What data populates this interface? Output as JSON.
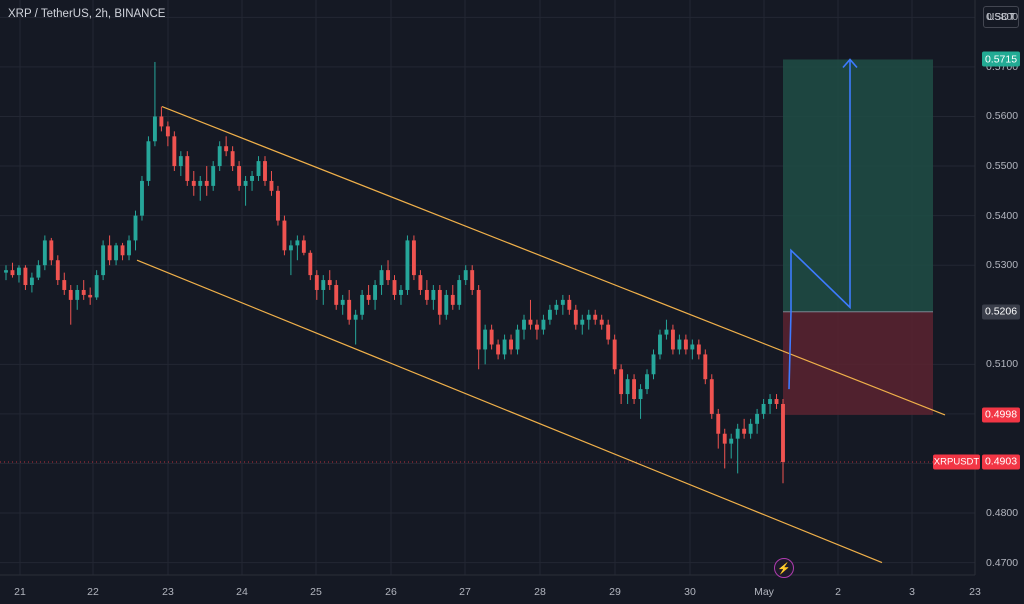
{
  "header": {
    "title": "XRP / TetherUS, 2h, BINANCE",
    "currency": "USDT"
  },
  "colors": {
    "background": "#151924",
    "grid": "#232733",
    "up": "#26a69a",
    "down": "#ef5350",
    "channel": "#f0b04a",
    "arrow": "#3d7bff",
    "target_zone": "#1f4d45",
    "stop_zone": "#5a2330"
  },
  "price_tags": {
    "target": {
      "label": "0.5715",
      "bg": "#22ab94"
    },
    "entry": {
      "label": "0.5206",
      "bg": "#3a3e4a"
    },
    "stop": {
      "label": "0.4998",
      "bg": "#f23645"
    },
    "last": {
      "symbol": "XRPUSDT",
      "label": "0.4903",
      "bg": "#f23645"
    }
  },
  "icons": {
    "event": "lightning-bolt-icon"
  },
  "chart_data": {
    "type": "candlestick",
    "title": "XRP / TetherUS, 2h, BINANCE",
    "ylim": [
      0.4675,
      0.5835
    ],
    "y_ticks": [
      "0.5800",
      "0.5700",
      "0.5600",
      "0.5500",
      "0.5400",
      "0.5300",
      "0.5100",
      "0.5000",
      "0.4900",
      "0.4800",
      "0.4700"
    ],
    "x_ticks": [
      "21",
      "22",
      "23",
      "24",
      "25",
      "26",
      "27",
      "28",
      "29",
      "30",
      "May",
      "2",
      "3",
      "23"
    ],
    "grid": true,
    "legend": "none",
    "candles": [
      [
        0.5285,
        0.53,
        0.527,
        0.529
      ],
      [
        0.529,
        0.5305,
        0.5275,
        0.528
      ],
      [
        0.528,
        0.53,
        0.5265,
        0.5295
      ],
      [
        0.5295,
        0.53,
        0.525,
        0.526
      ],
      [
        0.526,
        0.5285,
        0.5245,
        0.5275
      ],
      [
        0.5275,
        0.531,
        0.527,
        0.53
      ],
      [
        0.53,
        0.536,
        0.529,
        0.535
      ],
      [
        0.535,
        0.5355,
        0.53,
        0.531
      ],
      [
        0.531,
        0.532,
        0.526,
        0.527
      ],
      [
        0.527,
        0.5285,
        0.524,
        0.525
      ],
      [
        0.525,
        0.526,
        0.518,
        0.523
      ],
      [
        0.523,
        0.526,
        0.521,
        0.525
      ],
      [
        0.525,
        0.527,
        0.523,
        0.524
      ],
      [
        0.524,
        0.5255,
        0.522,
        0.5235
      ],
      [
        0.5235,
        0.529,
        0.523,
        0.528
      ],
      [
        0.528,
        0.535,
        0.527,
        0.534
      ],
      [
        0.534,
        0.536,
        0.53,
        0.531
      ],
      [
        0.531,
        0.5345,
        0.53,
        0.534
      ],
      [
        0.534,
        0.5345,
        0.531,
        0.532
      ],
      [
        0.532,
        0.536,
        0.531,
        0.535
      ],
      [
        0.535,
        0.541,
        0.533,
        0.54
      ],
      [
        0.54,
        0.548,
        0.539,
        0.547
      ],
      [
        0.547,
        0.556,
        0.546,
        0.555
      ],
      [
        0.555,
        0.571,
        0.554,
        0.56
      ],
      [
        0.56,
        0.562,
        0.557,
        0.558
      ],
      [
        0.558,
        0.559,
        0.554,
        0.556
      ],
      [
        0.556,
        0.557,
        0.549,
        0.55
      ],
      [
        0.55,
        0.553,
        0.548,
        0.552
      ],
      [
        0.552,
        0.553,
        0.546,
        0.547
      ],
      [
        0.547,
        0.549,
        0.544,
        0.546
      ],
      [
        0.546,
        0.548,
        0.543,
        0.547
      ],
      [
        0.547,
        0.55,
        0.544,
        0.546
      ],
      [
        0.546,
        0.551,
        0.545,
        0.55
      ],
      [
        0.55,
        0.555,
        0.549,
        0.554
      ],
      [
        0.554,
        0.556,
        0.552,
        0.553
      ],
      [
        0.553,
        0.554,
        0.549,
        0.55
      ],
      [
        0.55,
        0.551,
        0.545,
        0.546
      ],
      [
        0.546,
        0.548,
        0.542,
        0.547
      ],
      [
        0.547,
        0.549,
        0.545,
        0.548
      ],
      [
        0.548,
        0.552,
        0.547,
        0.551
      ],
      [
        0.551,
        0.552,
        0.546,
        0.547
      ],
      [
        0.547,
        0.549,
        0.544,
        0.545
      ],
      [
        0.545,
        0.546,
        0.538,
        0.539
      ],
      [
        0.539,
        0.54,
        0.532,
        0.533
      ],
      [
        0.533,
        0.535,
        0.528,
        0.534
      ],
      [
        0.534,
        0.536,
        0.531,
        0.535
      ],
      [
        0.535,
        0.536,
        0.532,
        0.5325
      ],
      [
        0.5325,
        0.533,
        0.527,
        0.528
      ],
      [
        0.528,
        0.529,
        0.523,
        0.525
      ],
      [
        0.525,
        0.528,
        0.522,
        0.527
      ],
      [
        0.527,
        0.529,
        0.525,
        0.526
      ],
      [
        0.526,
        0.527,
        0.521,
        0.522
      ],
      [
        0.522,
        0.524,
        0.52,
        0.523
      ],
      [
        0.523,
        0.525,
        0.518,
        0.519
      ],
      [
        0.519,
        0.521,
        0.514,
        0.52
      ],
      [
        0.52,
        0.525,
        0.519,
        0.524
      ],
      [
        0.524,
        0.526,
        0.522,
        0.523
      ],
      [
        0.523,
        0.527,
        0.521,
        0.526
      ],
      [
        0.526,
        0.53,
        0.524,
        0.529
      ],
      [
        0.529,
        0.531,
        0.526,
        0.527
      ],
      [
        0.527,
        0.528,
        0.523,
        0.524
      ],
      [
        0.524,
        0.526,
        0.522,
        0.525
      ],
      [
        0.525,
        0.536,
        0.524,
        0.535
      ],
      [
        0.535,
        0.536,
        0.527,
        0.528
      ],
      [
        0.528,
        0.529,
        0.524,
        0.525
      ],
      [
        0.525,
        0.527,
        0.522,
        0.523
      ],
      [
        0.523,
        0.526,
        0.521,
        0.525
      ],
      [
        0.525,
        0.526,
        0.518,
        0.52
      ],
      [
        0.52,
        0.525,
        0.519,
        0.524
      ],
      [
        0.524,
        0.526,
        0.521,
        0.522
      ],
      [
        0.522,
        0.528,
        0.521,
        0.527
      ],
      [
        0.527,
        0.53,
        0.526,
        0.529
      ],
      [
        0.529,
        0.53,
        0.524,
        0.525
      ],
      [
        0.525,
        0.526,
        0.509,
        0.513
      ],
      [
        0.513,
        0.518,
        0.51,
        0.517
      ],
      [
        0.517,
        0.518,
        0.513,
        0.514
      ],
      [
        0.514,
        0.515,
        0.511,
        0.512
      ],
      [
        0.512,
        0.516,
        0.511,
        0.515
      ],
      [
        0.515,
        0.516,
        0.512,
        0.513
      ],
      [
        0.513,
        0.518,
        0.512,
        0.517
      ],
      [
        0.517,
        0.52,
        0.515,
        0.519
      ],
      [
        0.519,
        0.523,
        0.517,
        0.518
      ],
      [
        0.518,
        0.519,
        0.515,
        0.517
      ],
      [
        0.517,
        0.52,
        0.516,
        0.519
      ],
      [
        0.519,
        0.522,
        0.518,
        0.521
      ],
      [
        0.521,
        0.523,
        0.52,
        0.522
      ],
      [
        0.522,
        0.524,
        0.52,
        0.523
      ],
      [
        0.523,
        0.524,
        0.52,
        0.521
      ],
      [
        0.521,
        0.522,
        0.517,
        0.518
      ],
      [
        0.518,
        0.52,
        0.516,
        0.519
      ],
      [
        0.519,
        0.521,
        0.517,
        0.52
      ],
      [
        0.52,
        0.521,
        0.518,
        0.519
      ],
      [
        0.519,
        0.52,
        0.517,
        0.518
      ],
      [
        0.518,
        0.519,
        0.514,
        0.515
      ],
      [
        0.515,
        0.516,
        0.508,
        0.509
      ],
      [
        0.509,
        0.51,
        0.502,
        0.504
      ],
      [
        0.504,
        0.508,
        0.502,
        0.507
      ],
      [
        0.507,
        0.508,
        0.502,
        0.503
      ],
      [
        0.503,
        0.506,
        0.499,
        0.505
      ],
      [
        0.505,
        0.509,
        0.504,
        0.508
      ],
      [
        0.508,
        0.513,
        0.507,
        0.512
      ],
      [
        0.512,
        0.517,
        0.511,
        0.516
      ],
      [
        0.516,
        0.519,
        0.515,
        0.517
      ],
      [
        0.517,
        0.518,
        0.512,
        0.513
      ],
      [
        0.513,
        0.516,
        0.512,
        0.515
      ],
      [
        0.515,
        0.516,
        0.512,
        0.513
      ],
      [
        0.513,
        0.515,
        0.511,
        0.514
      ],
      [
        0.514,
        0.515,
        0.511,
        0.512
      ],
      [
        0.512,
        0.513,
        0.506,
        0.507
      ],
      [
        0.507,
        0.508,
        0.499,
        0.5
      ],
      [
        0.5,
        0.501,
        0.493,
        0.496
      ],
      [
        0.496,
        0.497,
        0.489,
        0.494
      ],
      [
        0.494,
        0.496,
        0.491,
        0.495
      ],
      [
        0.495,
        0.498,
        0.488,
        0.497
      ],
      [
        0.497,
        0.499,
        0.495,
        0.496
      ],
      [
        0.496,
        0.499,
        0.495,
        0.498
      ],
      [
        0.498,
        0.501,
        0.496,
        0.5
      ],
      [
        0.5,
        0.503,
        0.499,
        0.502
      ],
      [
        0.502,
        0.504,
        0.5,
        0.503
      ],
      [
        0.503,
        0.504,
        0.501,
        0.502
      ],
      [
        0.502,
        0.503,
        0.486,
        0.4903
      ]
    ],
    "channel_upper": {
      "start": [
        "23",
        0.562
      ],
      "end": [
        "3",
        0.4998
      ]
    },
    "channel_lower": {
      "start": [
        "22",
        0.531
      ],
      "end": [
        "23",
        0.47
      ]
    },
    "position": {
      "entry": 0.5206,
      "target": 0.5715,
      "stop": 0.4998
    },
    "projection_path": [
      0.505,
      0.5206,
      0.533,
      0.5215,
      0.5715
    ]
  }
}
